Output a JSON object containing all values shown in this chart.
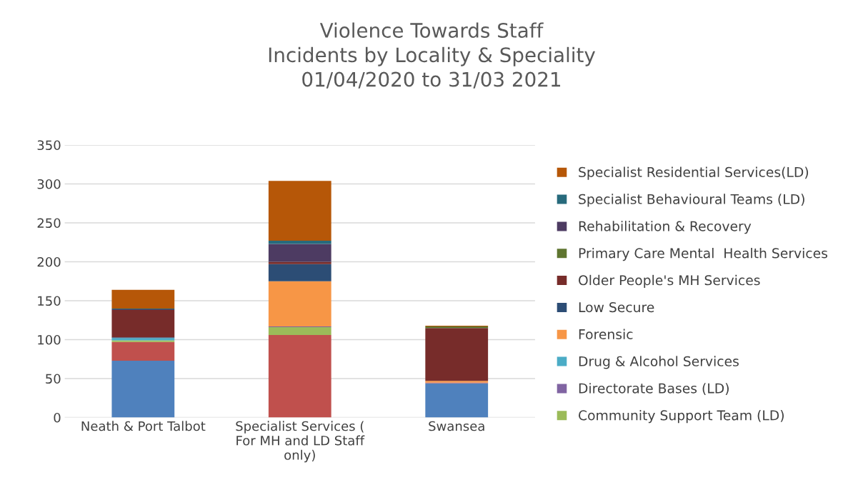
{
  "chart_data": {
    "type": "bar",
    "stacked": true,
    "title": "Violence Towards Staff\nIncidents by Locality & Speciality\n01/04/2020 to 31/03 2021",
    "categories": [
      "Neath & Port Talbot",
      "Specialist Services (\nFor MH and LD Staff\nonly)",
      "Swansea"
    ],
    "series": [
      {
        "color": "#4f81bd",
        "values": [
          73,
          0,
          44
        ]
      },
      {
        "color": "#c0504d",
        "values": [
          24,
          106,
          1
        ]
      },
      {
        "name": "Community Support Team (LD)",
        "color": "#9bbb59",
        "values": [
          2,
          10,
          0
        ]
      },
      {
        "name": "Directorate Bases (LD)",
        "color": "#8064a2",
        "values": [
          0,
          1,
          0
        ]
      },
      {
        "name": "Drug & Alcohol Services",
        "color": "#4bacc6",
        "values": [
          3,
          0,
          0
        ]
      },
      {
        "name": "Forensic",
        "color": "#f79646",
        "values": [
          0,
          58,
          2
        ]
      },
      {
        "name": "Low Secure",
        "color": "#2c4d75",
        "values": [
          1,
          22,
          0
        ]
      },
      {
        "name": "Older People's MH Services",
        "color": "#772c2a",
        "values": [
          35,
          3,
          68
        ]
      },
      {
        "name": "Primary Care Mental  Health Services",
        "color": "#5f7530",
        "values": [
          0,
          0,
          2
        ]
      },
      {
        "name": "Rehabilitation & Recovery",
        "color": "#4d3b62",
        "values": [
          1,
          23,
          0
        ]
      },
      {
        "name": "Specialist Behavioural Teams (LD)",
        "color": "#276a7c",
        "values": [
          1,
          4,
          0
        ]
      },
      {
        "name": "Specialist Residential Services(LD)",
        "color": "#b65708",
        "values": [
          24,
          77,
          1
        ]
      }
    ],
    "ylim": [
      0,
      350
    ],
    "yticks": [
      0,
      50,
      100,
      150,
      200,
      250,
      300,
      350
    ],
    "grid": "y",
    "legend": "right"
  }
}
